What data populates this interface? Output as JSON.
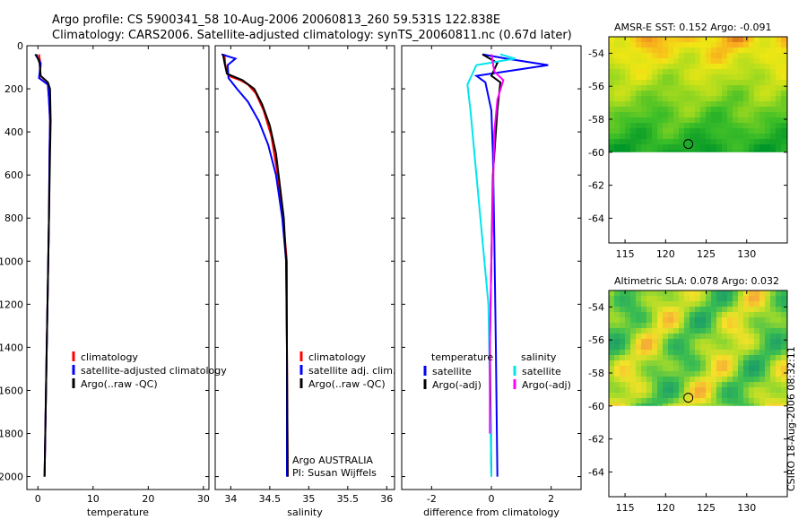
{
  "header": {
    "line1": "Argo profile: CS 5900341_58 10-Aug-2006 20060813_260 59.531S 122.838E",
    "line2": "Climatology: CARS2006. Satellite-adjusted climatology: synTS_20060811.nc (0.67d later)"
  },
  "signature": "CSIRO 18-Aug-2006 08:32:11",
  "colors": {
    "clim": "#ff0000",
    "sat": "#0000ff",
    "argo": "#000000",
    "sal_sat": "#00e5ee",
    "sal_argo": "#ff00ff"
  },
  "chart_data": [
    {
      "type": "line",
      "xlabel": "temperature",
      "xlim": [
        -2,
        31
      ],
      "ylim": [
        2060,
        0
      ],
      "xticks": [
        0,
        10,
        20,
        30
      ],
      "yticks": [
        0,
        200,
        400,
        600,
        800,
        1000,
        1200,
        1400,
        1600,
        1800,
        2000
      ],
      "legend_position": "lower-right",
      "series": [
        {
          "name": "climatology",
          "color": "#ff0000",
          "points": [
            [
              0.2,
              40
            ],
            [
              0.5,
              90
            ],
            [
              0.3,
              150
            ],
            [
              1.8,
              180
            ],
            [
              2.0,
              250
            ],
            [
              2.2,
              350
            ],
            [
              2.1,
              500
            ],
            [
              2.0,
              800
            ],
            [
              1.8,
              1100
            ],
            [
              1.6,
              1400
            ],
            [
              1.4,
              1700
            ],
            [
              1.2,
              2000
            ]
          ]
        },
        {
          "name": "satellite-adjusted climatology",
          "color": "#0000ff",
          "points": [
            [
              -0.5,
              40
            ],
            [
              0.5,
              80
            ],
            [
              0.2,
              150
            ],
            [
              1.8,
              180
            ],
            [
              2.0,
              250
            ],
            [
              2.2,
              350
            ],
            [
              2.1,
              500
            ],
            [
              2.0,
              800
            ],
            [
              1.8,
              1100
            ],
            [
              1.6,
              1400
            ],
            [
              1.4,
              1700
            ],
            [
              1.2,
              2000
            ]
          ]
        },
        {
          "name": "Argo(..raw -QC)",
          "color": "#000000",
          "points": [
            [
              -0.3,
              40
            ],
            [
              0.3,
              80
            ],
            [
              0.5,
              140
            ],
            [
              1.8,
              170
            ],
            [
              2.2,
              200
            ],
            [
              2.3,
              350
            ],
            [
              2.2,
              500
            ],
            [
              2.0,
              800
            ],
            [
              1.8,
              1100
            ],
            [
              1.6,
              1400
            ],
            [
              1.4,
              1700
            ],
            [
              1.2,
              2000
            ]
          ]
        }
      ]
    },
    {
      "type": "line",
      "xlabel": "salinity",
      "xlim": [
        33.8,
        36.1
      ],
      "ylim": [
        2060,
        0
      ],
      "xticks": [
        34,
        34.5,
        35,
        35.5,
        36
      ],
      "xtick_labels": [
        "34",
        "34.5",
        "35",
        "35.5",
        "36"
      ],
      "yticks": [
        0,
        200,
        400,
        600,
        800,
        1000,
        1200,
        1400,
        1600,
        1800,
        2000
      ],
      "legend_position": "lower-right",
      "annotation": [
        "Argo AUSTRALIA",
        "PI: Susan Wijffels"
      ],
      "series": [
        {
          "name": "climatology",
          "color": "#ff0000",
          "points": [
            [
              33.92,
              40
            ],
            [
              33.93,
              90
            ],
            [
              33.97,
              140
            ],
            [
              34.12,
              160
            ],
            [
              34.22,
              180
            ],
            [
              34.32,
              220
            ],
            [
              34.42,
              300
            ],
            [
              34.52,
              420
            ],
            [
              34.61,
              620
            ],
            [
              34.67,
              800
            ],
            [
              34.72,
              1000
            ],
            [
              34.72,
              1400
            ],
            [
              34.73,
              2000
            ]
          ]
        },
        {
          "name": "satellite adj. clim.",
          "color": "#0000ff",
          "points": [
            [
              33.88,
              40
            ],
            [
              34.06,
              60
            ],
            [
              33.96,
              90
            ],
            [
              33.97,
              150
            ],
            [
              34.08,
              200
            ],
            [
              34.22,
              260
            ],
            [
              34.36,
              350
            ],
            [
              34.48,
              460
            ],
            [
              34.58,
              600
            ],
            [
              34.66,
              800
            ],
            [
              34.71,
              1000
            ],
            [
              34.72,
              1400
            ],
            [
              34.72,
              2000
            ]
          ]
        },
        {
          "name": "Argo(..raw -QC)",
          "color": "#000000",
          "points": [
            [
              33.9,
              40
            ],
            [
              33.92,
              80
            ],
            [
              33.95,
              130
            ],
            [
              34.15,
              160
            ],
            [
              34.3,
              200
            ],
            [
              34.4,
              270
            ],
            [
              34.5,
              370
            ],
            [
              34.58,
              500
            ],
            [
              34.63,
              650
            ],
            [
              34.68,
              800
            ],
            [
              34.71,
              1000
            ],
            [
              34.72,
              1400
            ],
            [
              34.73,
              2000
            ]
          ]
        }
      ]
    },
    {
      "type": "line",
      "xlabel": "difference from climatology",
      "xlim": [
        -3,
        3
      ],
      "ylim": [
        2060,
        0
      ],
      "xticks": [
        -2,
        0,
        2
      ],
      "yticks": [
        0,
        200,
        400,
        600,
        800,
        1000,
        1200,
        1400,
        1600,
        1800,
        2000
      ],
      "legend_position": "lower",
      "legend_titles": [
        "temperature",
        "salinity"
      ],
      "series": [
        {
          "name": "satellite",
          "group": "temperature",
          "color": "#0000ff",
          "points": [
            [
              -0.3,
              40
            ],
            [
              0.5,
              60
            ],
            [
              1.9,
              90
            ],
            [
              -0.5,
              140
            ],
            [
              -0.2,
              170
            ],
            [
              0.0,
              300
            ],
            [
              0.05,
              500
            ],
            [
              0.1,
              900
            ],
            [
              0.15,
              1400
            ],
            [
              0.2,
              2000
            ]
          ]
        },
        {
          "name": "Argo(-adj)",
          "group": "temperature",
          "color": "#000000",
          "points": [
            [
              -0.3,
              40
            ],
            [
              0.2,
              80
            ],
            [
              0.0,
              140
            ],
            [
              0.3,
              170
            ],
            [
              0.2,
              300
            ],
            [
              0.05,
              600
            ],
            [
              0.0,
              1000
            ],
            [
              -0.05,
              1400
            ],
            [
              0.0,
              2000
            ]
          ]
        },
        {
          "name": "satellite",
          "group": "salinity",
          "color": "#00e5ee",
          "points": [
            [
              0.3,
              40
            ],
            [
              0.8,
              60
            ],
            [
              -0.5,
              90
            ],
            [
              -0.8,
              180
            ],
            [
              -0.7,
              300
            ],
            [
              -0.5,
              600
            ],
            [
              -0.3,
              900
            ],
            [
              -0.1,
              1200
            ],
            [
              0.0,
              2000
            ]
          ]
        },
        {
          "name": "Argo(-adj)",
          "group": "salinity",
          "color": "#ff00ff",
          "points": [
            [
              0.0,
              40
            ],
            [
              0.1,
              120
            ],
            [
              0.4,
              160
            ],
            [
              0.2,
              250
            ],
            [
              0.1,
              400
            ],
            [
              0.05,
              700
            ],
            [
              0.0,
              1000
            ],
            [
              -0.05,
              1400
            ],
            [
              -0.05,
              1800
            ]
          ]
        }
      ]
    },
    {
      "type": "heatmap",
      "title": "AMSR-E SST: 0.152 Argo: -0.091",
      "xlim": [
        113,
        135
      ],
      "ylim": [
        -65.5,
        -53
      ],
      "xticks": [
        115,
        120,
        125,
        130
      ],
      "yticks": [
        -54,
        -56,
        -58,
        -60,
        -62,
        -64
      ],
      "data_extent_lat": [
        -60,
        -53
      ],
      "marker": {
        "lon": 122.8,
        "lat": -59.5
      }
    },
    {
      "type": "heatmap",
      "title": "Altimetric SLA: 0.078 Argo: 0.032",
      "xlim": [
        113,
        135
      ],
      "ylim": [
        -65.5,
        -53
      ],
      "xticks": [
        115,
        120,
        125,
        130
      ],
      "yticks": [
        -54,
        -56,
        -58,
        -60,
        -62,
        -64
      ],
      "data_extent_lat": [
        -60,
        -53
      ],
      "marker": {
        "lon": 122.8,
        "lat": -59.5
      }
    }
  ]
}
